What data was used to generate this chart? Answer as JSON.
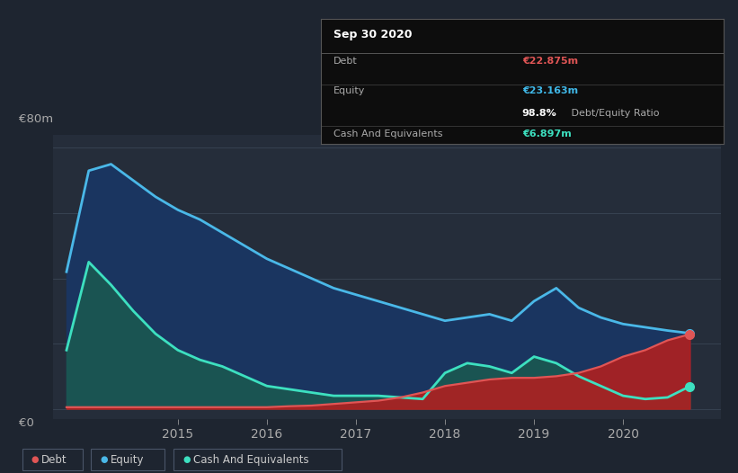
{
  "background_color": "#1e2530",
  "plot_bg_color": "#252d3a",
  "ylabel": "€80m",
  "y0label": "€0",
  "xlim_min": 2013.6,
  "xlim_max": 2021.1,
  "ylim_min": -3,
  "ylim_max": 84,
  "xticks": [
    2015,
    2016,
    2017,
    2018,
    2019,
    2020
  ],
  "debt_color": "#e05555",
  "equity_color": "#4ab8e8",
  "cash_color": "#3de0c0",
  "debt_fill": "#b02020",
  "equity_fill": "#1a3560",
  "cash_fill": "#1a5a50",
  "info_box_bg": "#0d0d0d",
  "info_box_border": "#555555",
  "debt_label_color": "#e05555",
  "equity_label_color": "#40b8e8",
  "cash_label_color": "#3de0c0",
  "debt_value": "€22.875m",
  "equity_value": "€23.163m",
  "ratio_text": "98.8%",
  "cash_value": "€6.897m",
  "title_info": "Sep 30 2020",
  "years": [
    2013.75,
    2014.0,
    2014.25,
    2014.5,
    2014.75,
    2015.0,
    2015.25,
    2015.5,
    2015.75,
    2016.0,
    2016.25,
    2016.5,
    2016.75,
    2017.0,
    2017.25,
    2017.5,
    2017.75,
    2018.0,
    2018.25,
    2018.5,
    2018.75,
    2019.0,
    2019.25,
    2019.5,
    2019.75,
    2020.0,
    2020.25,
    2020.5,
    2020.75
  ],
  "equity": [
    42,
    73,
    75,
    70,
    65,
    61,
    58,
    54,
    50,
    46,
    43,
    40,
    37,
    35,
    33,
    31,
    29,
    27,
    28,
    29,
    27,
    33,
    37,
    31,
    28,
    26,
    25,
    24,
    23.163
  ],
  "cash": [
    18,
    45,
    38,
    30,
    23,
    18,
    15,
    13,
    10,
    7,
    6,
    5,
    4,
    4,
    4,
    3.5,
    3,
    11,
    14,
    13,
    11,
    16,
    14,
    10,
    7,
    4,
    3,
    3.5,
    6.897
  ],
  "debt": [
    0.5,
    0.5,
    0.5,
    0.5,
    0.5,
    0.5,
    0.5,
    0.5,
    0.5,
    0.5,
    0.8,
    1,
    1.5,
    2,
    2.5,
    3.5,
    5,
    7,
    8,
    9,
    9.5,
    9.5,
    10,
    11,
    13,
    16,
    18,
    21,
    22.875
  ]
}
